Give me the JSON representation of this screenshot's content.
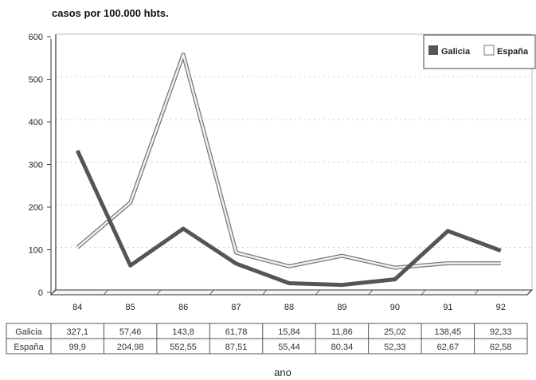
{
  "chart_data": {
    "type": "line",
    "title": "casos por 100.000 hbts.",
    "xlabel": "ano",
    "categories": [
      "84",
      "85",
      "86",
      "87",
      "88",
      "89",
      "90",
      "91",
      "92"
    ],
    "ylim": [
      0,
      600
    ],
    "yticks": [
      0,
      100,
      200,
      300,
      400,
      500,
      600
    ],
    "legend_position": "top-right",
    "series": [
      {
        "name": "Galicia",
        "color": "#555555",
        "values": [
          327.1,
          57.46,
          143.8,
          61.78,
          15.84,
          11.86,
          25.02,
          138.45,
          92.33
        ],
        "labels": [
          "327,1",
          "57,46",
          "143,8",
          "61,78",
          "15,84",
          "11,86",
          "25,02",
          "138,45",
          "92,33"
        ]
      },
      {
        "name": "España",
        "color": "#999999",
        "values": [
          99.9,
          204.98,
          552.55,
          87.51,
          55.44,
          80.34,
          52.33,
          62.67,
          62.58
        ],
        "labels": [
          "99,9",
          "204,98",
          "552,55",
          "87,51",
          "55,44",
          "80,34",
          "52,33",
          "62,67",
          "62,58"
        ]
      }
    ]
  }
}
